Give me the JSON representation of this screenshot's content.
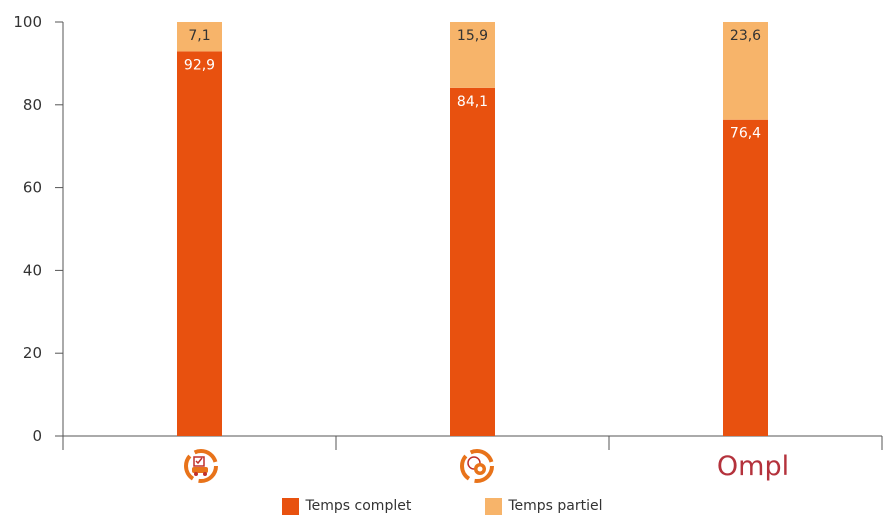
{
  "chart_data": {
    "type": "bar",
    "stacked": true,
    "categories": [
      "",
      "",
      "Ompl"
    ],
    "category_icons": [
      "car-maintenance-icon",
      "vehicle-service-icon",
      "ompl-logo"
    ],
    "ylim": [
      0,
      100
    ],
    "yticks": [
      0,
      20,
      40,
      60,
      80,
      100
    ],
    "grid": false,
    "legend_position": "bottom",
    "series": [
      {
        "name": "Temps complet",
        "color": "#e8510f",
        "values": [
          92.9,
          84.1,
          76.4
        ],
        "labels": [
          "92,9",
          "84,1",
          "76,4"
        ]
      },
      {
        "name": "Temps partiel",
        "color": "#f7b46a",
        "values": [
          7.1,
          15.9,
          23.6
        ],
        "labels": [
          "7,1",
          "15,9",
          "23,6"
        ]
      }
    ]
  },
  "colors": {
    "axis": "#555555",
    "icon_orange": "#e8731a",
    "icon_red": "#c0302b",
    "logo": "#b4323c"
  }
}
